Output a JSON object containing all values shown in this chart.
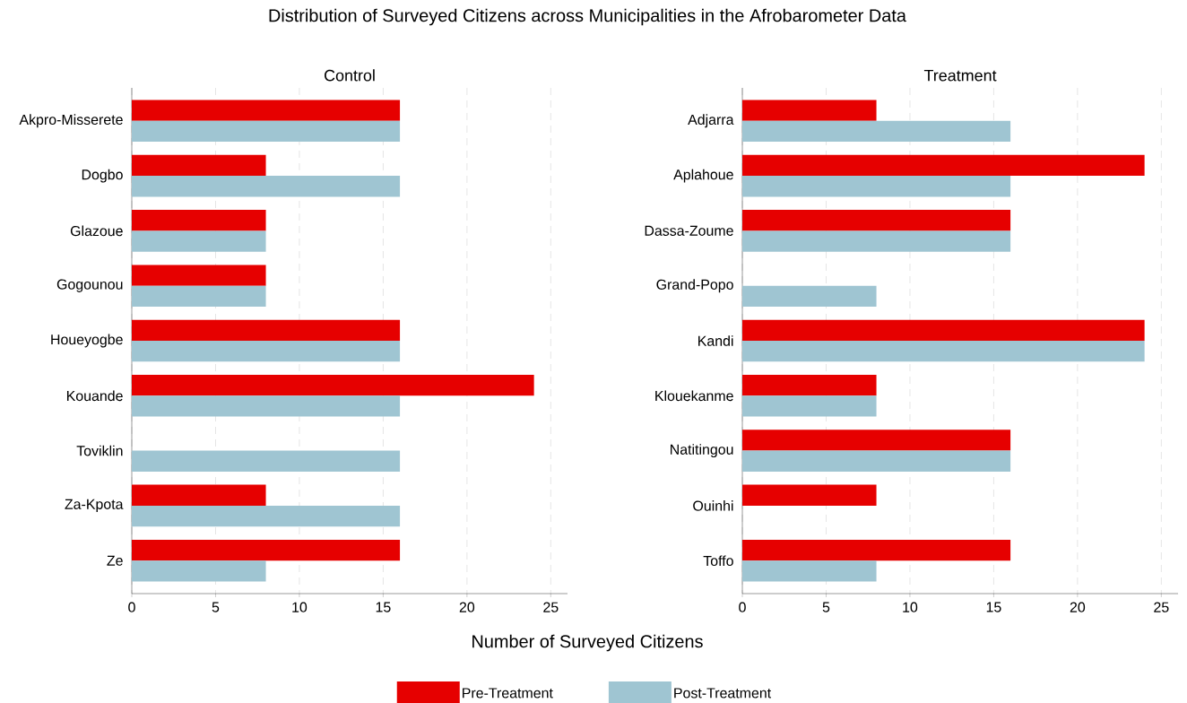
{
  "chart_data": [
    {
      "type": "bar",
      "orientation": "horizontal",
      "title": "Distribution of Surveyed Citizens across Municipalities in the Afrobarometer Data",
      "subtitle": "Control",
      "xlabel": "Number of Surveyed Citizens",
      "categories": [
        "Akpro-Misserete",
        "Dogbo",
        "Glazoue",
        "Gogounou",
        "Houeyogbe",
        "Kouande",
        "Toviklin",
        "Za-Kpota",
        "Ze"
      ],
      "series": [
        {
          "name": "Pre-Treatment",
          "color": "#e60000",
          "values": [
            16,
            8,
            8,
            8,
            16,
            24,
            null,
            8,
            16
          ]
        },
        {
          "name": "Post-Treatment",
          "color": "#9fc5d2",
          "values": [
            16,
            16,
            8,
            8,
            16,
            16,
            16,
            16,
            8
          ]
        }
      ],
      "xlim": [
        0,
        26
      ],
      "xticks": [
        0,
        5,
        10,
        15,
        20,
        25
      ],
      "grid": "x",
      "legend": "bottom"
    },
    {
      "type": "bar",
      "orientation": "horizontal",
      "subtitle": "Treatment",
      "categories": [
        "Adjarra",
        "Aplahoue",
        "Dassa-Zoume",
        "Grand-Popo",
        "Kandi",
        "Klouekanme",
        "Natitingou",
        "Ouinhi",
        "Toffo"
      ],
      "series": [
        {
          "color": "#e60000",
          "values": [
            8,
            24,
            16,
            null,
            24,
            8,
            16,
            8,
            16
          ]
        },
        {
          "color": "#9fc5d2",
          "values": [
            16,
            16,
            16,
            8,
            24,
            8,
            16,
            null,
            8
          ]
        }
      ],
      "xlim": [
        0,
        26
      ],
      "xticks": [
        0,
        5,
        10,
        15,
        20,
        25
      ],
      "grid": "x"
    }
  ]
}
